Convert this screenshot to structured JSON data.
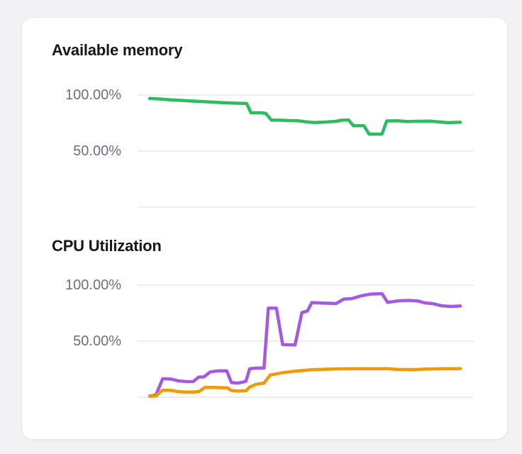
{
  "theme": {
    "page_background": "#f2f2f4",
    "card_background": "#ffffff",
    "card_border": "#e8e8ec",
    "title_color": "#17181a",
    "tick_label_color": "#6a7080",
    "gridline": "#e8e8ec",
    "memory_line_color": "#2cbd5e",
    "cpu_line_1_color": "#a45ae0",
    "cpu_line_2_color": "#f09a0b"
  },
  "chart_data": [
    {
      "type": "line",
      "title": "Available memory",
      "xlabel": "",
      "ylabel": "",
      "ylim": [
        0,
        100
      ],
      "grid": "horizontal",
      "legend": "none",
      "x_axis_labels": "none",
      "gridlines": [
        100,
        50,
        0
      ],
      "y_ticks": [
        {
          "value": 100,
          "label": "100.00%"
        },
        {
          "value": 50,
          "label": "50.00%"
        }
      ],
      "series": [
        {
          "name": "available-memory",
          "color": "#2cbd5e",
          "x": [
            0,
            0.03,
            0.068,
            0.11,
            0.15,
            0.19,
            0.23,
            0.266,
            0.3,
            0.312,
            0.326,
            0.36,
            0.374,
            0.392,
            0.42,
            0.45,
            0.48,
            0.505,
            0.53,
            0.565,
            0.6,
            0.62,
            0.64,
            0.656,
            0.69,
            0.706,
            0.748,
            0.763,
            0.8,
            0.83,
            0.862,
            0.9,
            0.93,
            0.958,
            1
          ],
          "values": [
            97,
            96.5,
            95.7,
            95.1,
            94.5,
            93.9,
            93.3,
            92.9,
            92.6,
            92.6,
            84.2,
            84.2,
            83.6,
            77.6,
            77.6,
            77.2,
            77,
            76,
            75.5,
            75.9,
            76.6,
            77.6,
            77.8,
            72.6,
            72.6,
            65.2,
            65.2,
            76.9,
            77,
            76.3,
            76.6,
            76.8,
            76.1,
            75.4,
            75.7
          ]
        }
      ]
    },
    {
      "type": "line",
      "title": "CPU Utilization",
      "xlabel": "",
      "ylabel": "",
      "ylim": [
        0,
        100
      ],
      "grid": "horizontal",
      "legend": "none",
      "x_axis_labels": "none",
      "gridlines": [
        100,
        50,
        0
      ],
      "y_ticks": [
        {
          "value": 100,
          "label": "100.00%"
        },
        {
          "value": 50,
          "label": "50.00%"
        }
      ],
      "series": [
        {
          "name": "cpu-series-1",
          "color": "#a45ae0",
          "x": [
            0,
            0.02,
            0.042,
            0.07,
            0.092,
            0.12,
            0.14,
            0.158,
            0.175,
            0.195,
            0.222,
            0.248,
            0.263,
            0.282,
            0.3,
            0.31,
            0.322,
            0.342,
            0.368,
            0.382,
            0.408,
            0.428,
            0.468,
            0.49,
            0.508,
            0.522,
            0.556,
            0.6,
            0.625,
            0.65,
            0.68,
            0.71,
            0.748,
            0.766,
            0.8,
            0.832,
            0.86,
            0.89,
            0.91,
            0.94,
            0.97,
            1
          ],
          "values": [
            1,
            2,
            16.5,
            16.2,
            14.6,
            13.9,
            14,
            18,
            18.2,
            22.6,
            23.6,
            23.6,
            13.2,
            12.6,
            13.5,
            14.5,
            25.4,
            26,
            26,
            79.5,
            79.5,
            47,
            46.6,
            75.5,
            77,
            84.5,
            84,
            83.6,
            87.6,
            88,
            90.4,
            92,
            92.4,
            84.6,
            86,
            86.4,
            86,
            84,
            83.6,
            81.6,
            81,
            81.4
          ]
        },
        {
          "name": "cpu-series-2",
          "color": "#f09a0b",
          "x": [
            0,
            0.02,
            0.042,
            0.07,
            0.092,
            0.12,
            0.14,
            0.158,
            0.178,
            0.205,
            0.23,
            0.25,
            0.263,
            0.282,
            0.31,
            0.322,
            0.342,
            0.368,
            0.388,
            0.43,
            0.48,
            0.525,
            0.605,
            0.71,
            0.765,
            0.8,
            0.845,
            0.89,
            0.95,
            1
          ],
          "values": [
            0.8,
            1.2,
            6.3,
            6.1,
            5,
            4.6,
            4.6,
            5,
            8.8,
            8.8,
            8.5,
            8.5,
            6,
            5.5,
            5.8,
            9,
            11.6,
            12.6,
            19.8,
            22,
            23.6,
            24.6,
            25.3,
            25.5,
            25.5,
            24.8,
            24.6,
            25.2,
            25.5,
            25.5
          ]
        }
      ]
    }
  ]
}
